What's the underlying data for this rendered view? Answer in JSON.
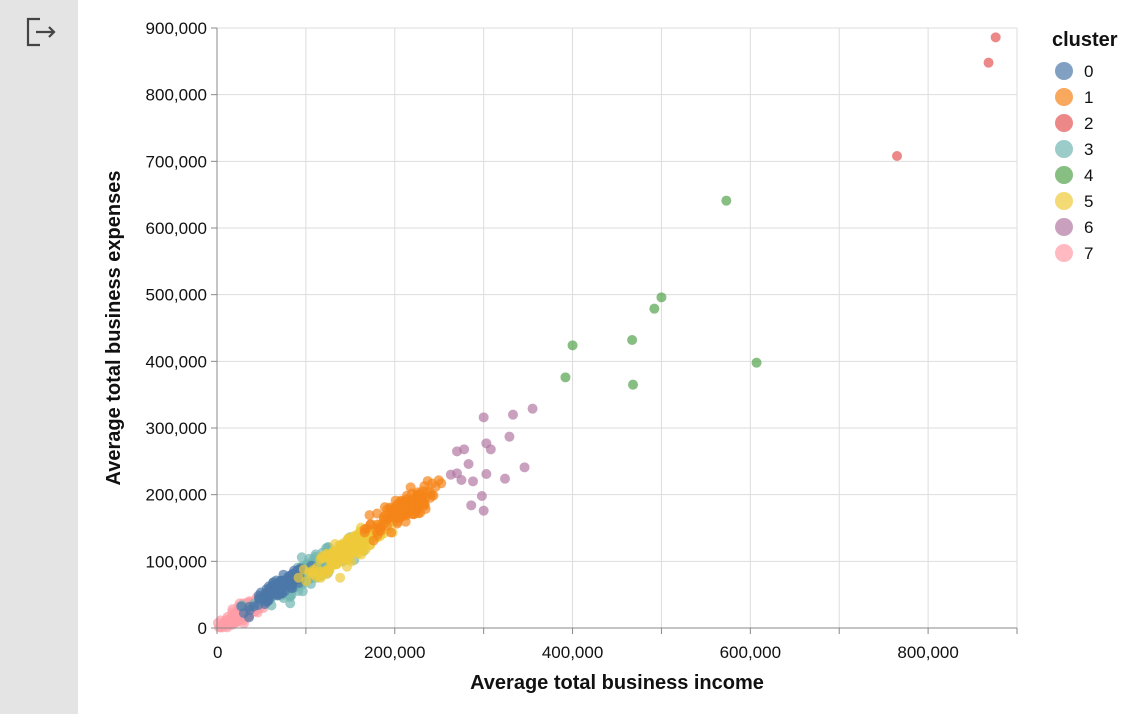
{
  "sidebar": {
    "logout_icon": "logout-icon"
  },
  "colors": {
    "clusters": [
      "#4c78a8",
      "#f58518",
      "#e45756",
      "#72b7b2",
      "#54a24b",
      "#eeca3b",
      "#b279a2",
      "#ff9da6"
    ],
    "grid": "#dddddd",
    "axis": "#888888",
    "sidebar_bg": "#e4e4e4"
  },
  "chart_data": {
    "type": "scatter",
    "xlabel": "Average total business income",
    "ylabel": "Average total business expenses",
    "xlim": [
      0,
      900000
    ],
    "ylim": [
      0,
      900000
    ],
    "x_ticks": [
      0,
      100000,
      200000,
      300000,
      400000,
      500000,
      600000,
      700000,
      800000,
      900000
    ],
    "x_tick_labels": [
      "0",
      "",
      "200,000",
      "",
      "400,000",
      "",
      "600,000",
      "",
      "800,000",
      ""
    ],
    "y_ticks": [
      0,
      100000,
      200000,
      300000,
      400000,
      500000,
      600000,
      700000,
      800000,
      900000
    ],
    "y_tick_labels": [
      "0",
      "100,000",
      "200,000",
      "300,000",
      "400,000",
      "500,000",
      "600,000",
      "700,000",
      "800,000",
      "900,000"
    ],
    "grid": true,
    "legend": {
      "title": "cluster",
      "placement": "top-right",
      "labels": [
        "0",
        "1",
        "2",
        "3",
        "4",
        "5",
        "6",
        "7"
      ]
    },
    "series": [
      {
        "name": "0",
        "center": [
          70000,
          60000
        ],
        "spread": [
          15000,
          12000
        ],
        "count": 120
      },
      {
        "name": "1",
        "center": [
          205000,
          175000
        ],
        "spread": [
          20000,
          20000
        ],
        "count": 110
      },
      {
        "name": "2",
        "points": [
          [
            765000,
            708000
          ],
          [
            868000,
            848000
          ],
          [
            876000,
            886000
          ]
        ]
      },
      {
        "name": "3",
        "center": [
          105000,
          85000
        ],
        "spread": [
          22000,
          16000
        ],
        "count": 200
      },
      {
        "name": "4",
        "points": [
          [
            400000,
            424000
          ],
          [
            392000,
            376000
          ],
          [
            467000,
            432000
          ],
          [
            468000,
            365000
          ],
          [
            492000,
            479000
          ],
          [
            500000,
            496000
          ],
          [
            573000,
            641000
          ],
          [
            607000,
            398000
          ]
        ]
      },
      {
        "name": "5",
        "center": [
          150000,
          120000
        ],
        "spread": [
          20000,
          16000
        ],
        "count": 230
      },
      {
        "name": "6",
        "points": [
          [
            270000,
            265000
          ],
          [
            278000,
            268000
          ],
          [
            263000,
            230000
          ],
          [
            270000,
            232000
          ],
          [
            275000,
            222000
          ],
          [
            283000,
            246000
          ],
          [
            288000,
            220000
          ],
          [
            298000,
            198000
          ],
          [
            300000,
            176000
          ],
          [
            300000,
            316000
          ],
          [
            303000,
            277000
          ],
          [
            303000,
            231000
          ],
          [
            308000,
            268000
          ],
          [
            324000,
            224000
          ],
          [
            329000,
            287000
          ],
          [
            333000,
            320000
          ],
          [
            346000,
            241000
          ],
          [
            355000,
            329000
          ],
          [
            286000,
            184000
          ]
        ]
      },
      {
        "name": "7",
        "center": [
          35000,
          28000
        ],
        "spread": [
          15000,
          12000
        ],
        "count": 170
      }
    ]
  }
}
